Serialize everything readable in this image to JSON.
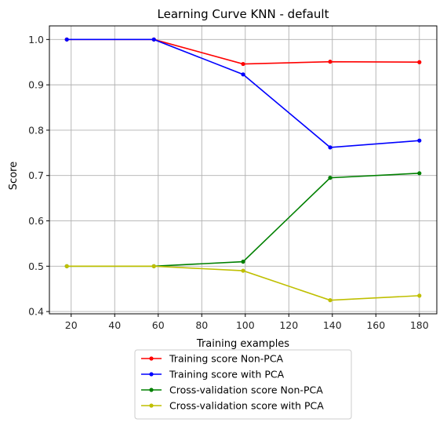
{
  "chart_data": {
    "type": "line",
    "title": "Learning Curve KNN - default",
    "xlabel": "Training examples",
    "ylabel": "Score",
    "xlim": [
      10,
      188
    ],
    "ylim": [
      0.395,
      1.03
    ],
    "xticks": [
      20,
      40,
      60,
      80,
      100,
      120,
      140,
      160,
      180
    ],
    "yticks": [
      0.4,
      0.5,
      0.6,
      0.7,
      0.8,
      0.9,
      1.0
    ],
    "xtick_labels": [
      "20",
      "40",
      "60",
      "80",
      "100",
      "120",
      "140",
      "160",
      "180"
    ],
    "ytick_labels": [
      "0.4",
      "0.5",
      "0.6",
      "0.7",
      "0.8",
      "0.9",
      "1.0"
    ],
    "grid": true,
    "legend_position": "below plot",
    "x": [
      18,
      58,
      99,
      139,
      180
    ],
    "series": [
      {
        "name": "Training score Non-PCA",
        "color": "#ff0000",
        "values": [
          1.0,
          1.0,
          0.946,
          0.951,
          0.95
        ]
      },
      {
        "name": "Training score with PCA",
        "color": "#0000ff",
        "values": [
          1.0,
          1.0,
          0.923,
          0.762,
          0.777
        ]
      },
      {
        "name": "Cross-validation score Non-PCA",
        "color": "#008000",
        "values": [
          0.5,
          0.5,
          0.51,
          0.695,
          0.705
        ]
      },
      {
        "name": "Cross-validation score with PCA",
        "color": "#bfbf00",
        "values": [
          0.5,
          0.5,
          0.49,
          0.425,
          0.435
        ]
      }
    ]
  }
}
